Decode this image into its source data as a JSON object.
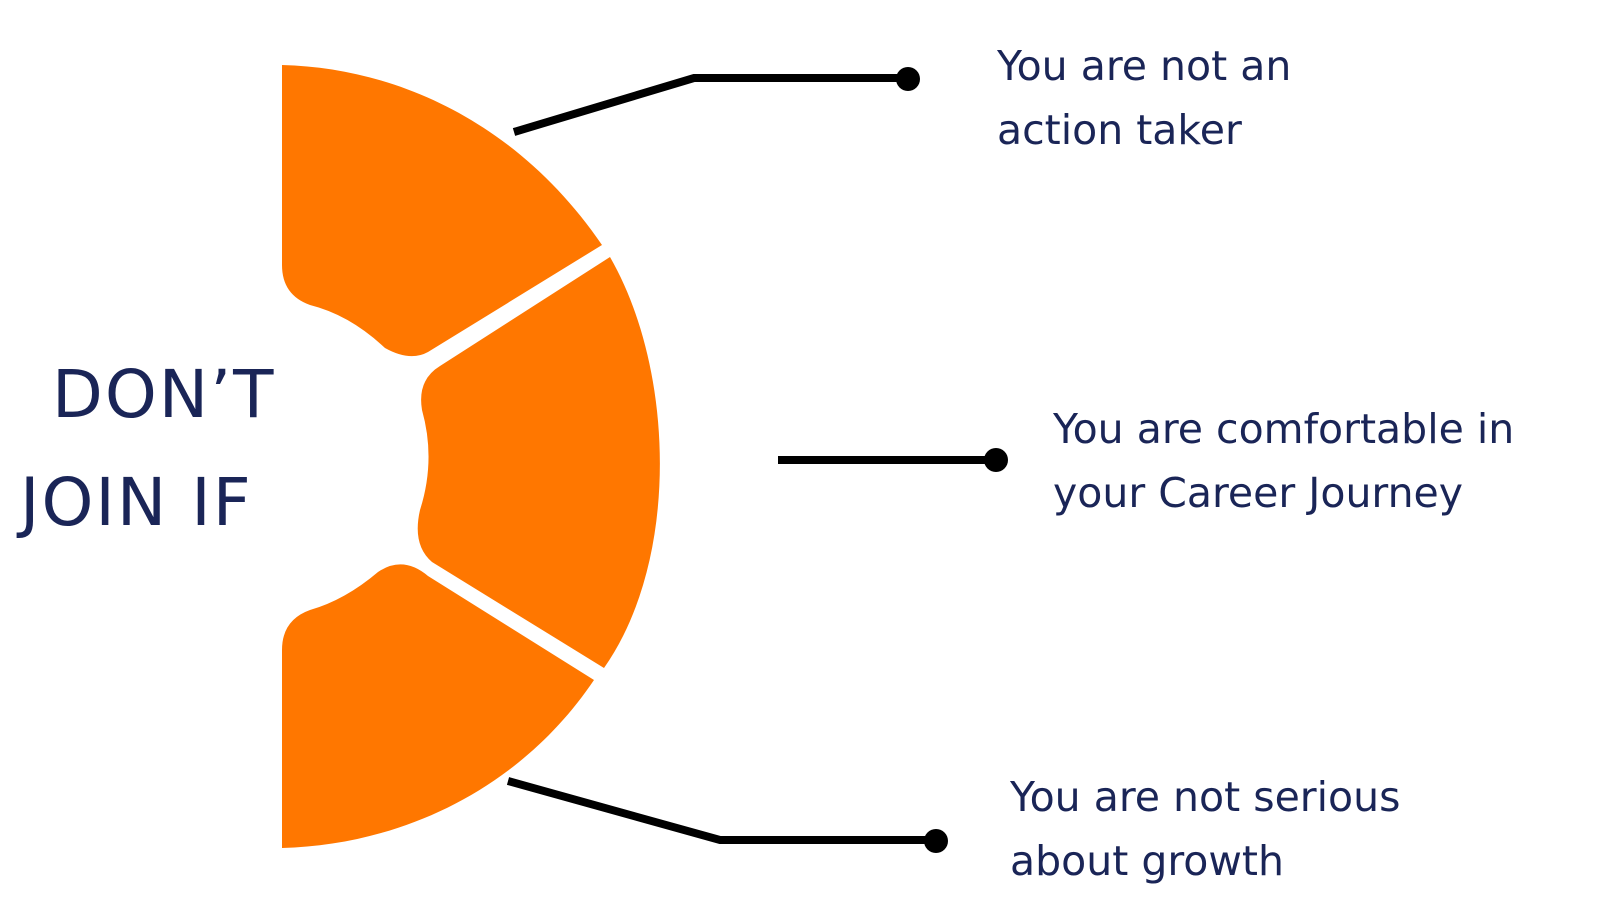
{
  "title": {
    "line1": "DON’T",
    "line2": "JOIN IF"
  },
  "items": [
    {
      "line1": "You are not an",
      "line2": "action taker"
    },
    {
      "line1": "You are comfortable in",
      "line2": "your Career Journey"
    },
    {
      "line1": "You are not serious",
      "line2": "about growth"
    }
  ],
  "colors": {
    "segment": "#ff7700",
    "text": "#1a2557",
    "connector": "#000000"
  }
}
